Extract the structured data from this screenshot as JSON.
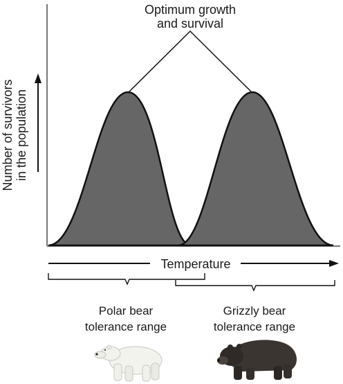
{
  "annotation": {
    "line1": "Optimum growth",
    "line2": "and survival"
  },
  "y_axis": {
    "line1": "Number of survivors",
    "line2": "in the population"
  },
  "x_axis": {
    "label": "Temperature"
  },
  "ranges": [
    {
      "line1": "Polar bear",
      "line2": "tolerance range"
    },
    {
      "line1": "Grizzly bear",
      "line2": "tolerance range"
    }
  ],
  "colors": {
    "curve_fill": "#666666",
    "curve_stroke": "#111111",
    "axis": "#777777",
    "text": "#1a1a1a",
    "polar_bear": "#f3f3ee",
    "grizzly_bear": "#3a3531"
  },
  "icons": [
    "polar-bear-image",
    "grizzly-bear-image"
  ]
}
